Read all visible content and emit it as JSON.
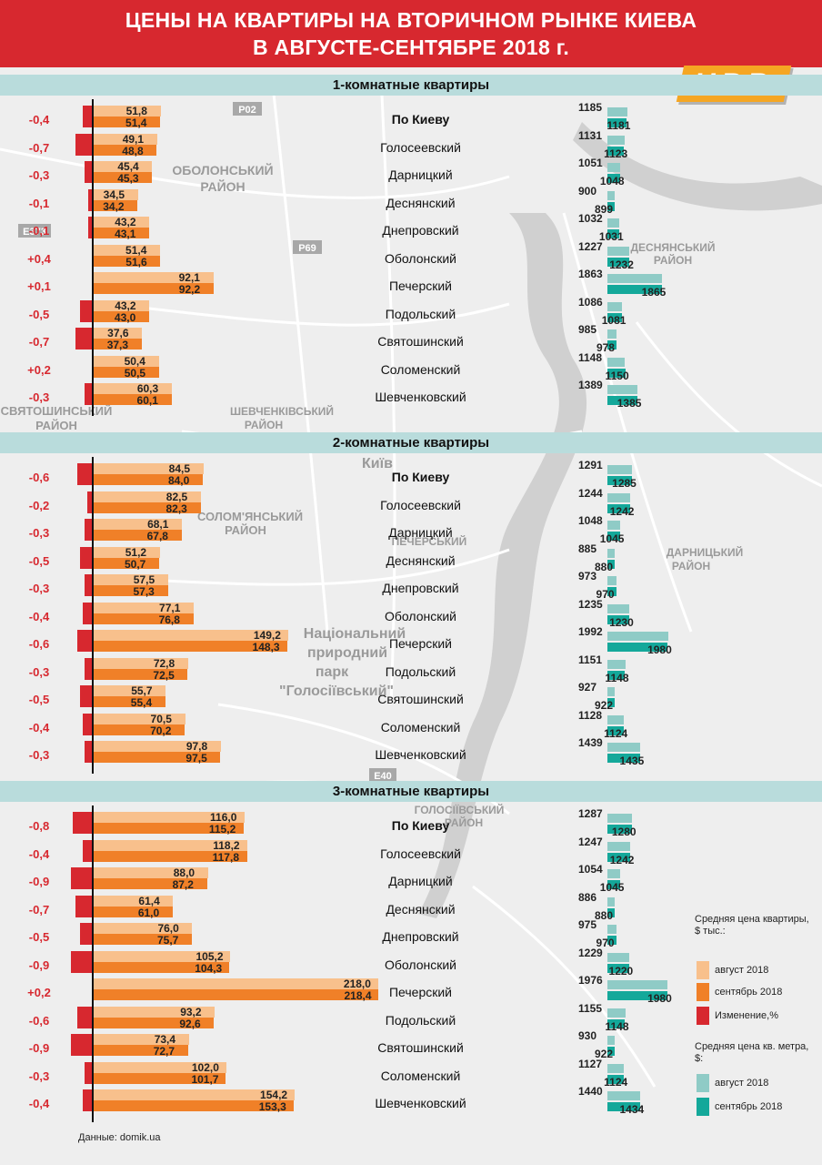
{
  "title_line1": "ЦЕНЫ НА КВАРТИРЫ НА ВТОРИЧНОМ РЫНКЕ КИЕВА",
  "title_line2": "В АВГУСТЕ-СЕНТЯБРЕ 2018 г.",
  "logo_text": "UBR",
  "source": "Данные: domik.ua",
  "colors": {
    "title_bg": "#d7282f",
    "header_bg": "#b9dcdc",
    "aug_apartment": "#f8c08c",
    "sep_apartment": "#f08028",
    "change": "#d7282f",
    "aug_sqm": "#8fcbc6",
    "sep_sqm": "#14a89a",
    "logo": "#f5a623"
  },
  "legend": {
    "price_title": "Средняя цена квартиры, $ тыс.:",
    "aug": "август 2018",
    "sep": "сентябрь 2018",
    "change": "Изменение,%",
    "sqm_title": "Средняя цена кв. метра, $:",
    "sqm_aug": "август 2018",
    "sqm_sep": "сентябрь 2018"
  },
  "map_labels": [
    {
      "text": "ОБОЛОНСЬКИЙ"
    },
    {
      "text": "РАЙОН"
    },
    {
      "text": "ДЕСНЯНСЬКИЙ"
    },
    {
      "text": "РАЙОН"
    },
    {
      "text": "ШЕВЧЕНКІВСЬКИЙ"
    },
    {
      "text": "РАЙОН"
    },
    {
      "text": "Київ"
    },
    {
      "text": "СОЛОМ'ЯНСЬКИЙ"
    },
    {
      "text": "РАЙОН"
    },
    {
      "text": "ПЕЧЕРСЬКИЙ"
    },
    {
      "text": "ДАРНИЦЬКИЙ"
    },
    {
      "text": "РАЙОН"
    },
    {
      "text": "Національний"
    },
    {
      "text": "природний"
    },
    {
      "text": "парк"
    },
    {
      "text": "\"Голосіївський\""
    },
    {
      "text": "ГОЛОСІЇВСЬКИЙ"
    },
    {
      "text": "РАЙОН"
    },
    {
      "text": "СВЯТОШИНСЬКИЙ"
    },
    {
      "text": "РАЙОН"
    },
    {
      "text": "Р02"
    },
    {
      "text": "Р69"
    },
    {
      "text": "Е373"
    },
    {
      "text": "Е40"
    }
  ],
  "chart_data": [
    {
      "type": "bar",
      "title": "1-комнатные квартиры",
      "categories": [
        "По Киеву",
        "Голосеевский",
        "Дарницкий",
        "Деснянский",
        "Днепровский",
        "Оболонский",
        "Печерский",
        "Подольский",
        "Святошинский",
        "Соломенский",
        "Шевченковский"
      ],
      "series": [
        {
          "name": "август 2018",
          "unit": "$ тыс.",
          "values": [
            51.8,
            49.1,
            45.4,
            34.5,
            43.2,
            51.4,
            92.1,
            43.2,
            37.6,
            50.4,
            60.3
          ],
          "labels": [
            "51,8",
            "49,1",
            "45,4",
            "34,5",
            "43,2",
            "51,4",
            "92,1",
            "43,2",
            "37,6",
            "50,4",
            "60,3"
          ]
        },
        {
          "name": "сентябрь 2018",
          "unit": "$ тыс.",
          "values": [
            51.4,
            48.8,
            45.3,
            34.2,
            43.1,
            51.6,
            92.2,
            43.0,
            37.3,
            50.5,
            60.1
          ],
          "labels": [
            "51,4",
            "48,8",
            "45,3",
            "34,2",
            "43,1",
            "51,6",
            "92,2",
            "43,0",
            "37,3",
            "50,5",
            "60,1"
          ]
        },
        {
          "name": "Изменение,%",
          "unit": "%",
          "values": [
            -0.4,
            -0.7,
            -0.3,
            -0.1,
            -0.1,
            0.4,
            0.1,
            -0.5,
            -0.7,
            0.2,
            -0.3
          ],
          "labels": [
            "-0,4",
            "-0,7",
            "-0,3",
            "-0,1",
            "-0,1",
            "+0,4",
            "+0,1",
            "-0,5",
            "-0,7",
            "+0,2",
            "-0,3"
          ]
        },
        {
          "name": "август 2018",
          "unit": "$ за кв. м",
          "values": [
            1185,
            1131,
            1051,
            900,
            1032,
            1227,
            1863,
            1086,
            985,
            1148,
            1389
          ],
          "labels": [
            "1185",
            "1131",
            "1051",
            "900",
            "1032",
            "1227",
            "1863",
            "1086",
            "985",
            "1148",
            "1389"
          ]
        },
        {
          "name": "сентябрь 2018",
          "unit": "$ за кв. м",
          "values": [
            1181,
            1123,
            1048,
            899,
            1031,
            1232,
            1865,
            1081,
            978,
            1150,
            1385
          ],
          "labels": [
            "1181",
            "1123",
            "1048",
            "899",
            "1031",
            "1232",
            "1865",
            "1081",
            "978",
            "1150",
            "1385"
          ]
        }
      ]
    },
    {
      "type": "bar",
      "title": "2-комнатные квартиры",
      "categories": [
        "По Киеву",
        "Голосеевский",
        "Дарницкий",
        "Деснянский",
        "Днепровский",
        "Оболонский",
        "Печерский",
        "Подольский",
        "Святошинский",
        "Соломенский",
        "Шевченковский"
      ],
      "series": [
        {
          "name": "август 2018",
          "unit": "$ тыс.",
          "values": [
            84.5,
            82.5,
            68.1,
            51.2,
            57.5,
            77.1,
            149.2,
            72.8,
            55.7,
            70.5,
            97.8
          ],
          "labels": [
            "84,5",
            "82,5",
            "68,1",
            "51,2",
            "57,5",
            "77,1",
            "149,2",
            "72,8",
            "55,7",
            "70,5",
            "97,8"
          ]
        },
        {
          "name": "сентябрь 2018",
          "unit": "$ тыс.",
          "values": [
            84.0,
            82.3,
            67.8,
            50.7,
            57.3,
            76.8,
            148.3,
            72.5,
            55.4,
            70.2,
            97.5
          ],
          "labels": [
            "84,0",
            "82,3",
            "67,8",
            "50,7",
            "57,3",
            "76,8",
            "148,3",
            "72,5",
            "55,4",
            "70,2",
            "97,5"
          ]
        },
        {
          "name": "Изменение,%",
          "unit": "%",
          "values": [
            -0.6,
            -0.2,
            -0.3,
            -0.5,
            -0.3,
            -0.4,
            -0.6,
            -0.3,
            -0.5,
            -0.4,
            -0.3
          ],
          "labels": [
            "-0,6",
            "-0,2",
            "-0,3",
            "-0,5",
            "-0,3",
            "-0,4",
            "-0,6",
            "-0,3",
            "-0,5",
            "-0,4",
            "-0,3"
          ]
        },
        {
          "name": "август 2018",
          "unit": "$ за кв. м",
          "values": [
            1291,
            1244,
            1048,
            885,
            973,
            1235,
            1992,
            1151,
            927,
            1128,
            1439
          ],
          "labels": [
            "1291",
            "1244",
            "1048",
            "885",
            "973",
            "1235",
            "1992",
            "1151",
            "927",
            "1128",
            "1439"
          ]
        },
        {
          "name": "сентябрь 2018",
          "unit": "$ за кв. м",
          "values": [
            1285,
            1242,
            1045,
            880,
            970,
            1230,
            1980,
            1148,
            922,
            1124,
            1435
          ],
          "labels": [
            "1285",
            "1242",
            "1045",
            "880",
            "970",
            "1230",
            "1980",
            "1148",
            "922",
            "1124",
            "1435"
          ]
        }
      ]
    },
    {
      "type": "bar",
      "title": "3-комнатные квартиры",
      "categories": [
        "По Киеву",
        "Голосеевский",
        "Дарницкий",
        "Деснянский",
        "Днепровский",
        "Оболонский",
        "Печерский",
        "Подольский",
        "Святошинский",
        "Соломенский",
        "Шевченковский"
      ],
      "series": [
        {
          "name": "август 2018",
          "unit": "$ тыс.",
          "values": [
            116.0,
            118.2,
            88.0,
            61.4,
            76.0,
            105.2,
            218.0,
            93.2,
            73.4,
            102.0,
            154.2
          ],
          "labels": [
            "116,0",
            "118,2",
            "88,0",
            "61,4",
            "76,0",
            "105,2",
            "218,0",
            "93,2",
            "73,4",
            "102,0",
            "154,2"
          ]
        },
        {
          "name": "сентябрь 2018",
          "unit": "$ тыс.",
          "values": [
            115.2,
            117.8,
            87.2,
            61.0,
            75.7,
            104.3,
            218.4,
            92.6,
            72.7,
            101.7,
            153.3
          ],
          "labels": [
            "115,2",
            "117,8",
            "87,2",
            "61,0",
            "75,7",
            "104,3",
            "218,4",
            "92,6",
            "72,7",
            "101,7",
            "153,3"
          ]
        },
        {
          "name": "Изменение,%",
          "unit": "%",
          "values": [
            -0.8,
            -0.4,
            -0.9,
            -0.7,
            -0.5,
            -0.9,
            0.2,
            -0.6,
            -0.9,
            -0.3,
            -0.4
          ],
          "labels": [
            "-0,8",
            "-0,4",
            "-0,9",
            "-0,7",
            "-0,5",
            "-0,9",
            "+0,2",
            "-0,6",
            "-0,9",
            "-0,3",
            "-0,4"
          ]
        },
        {
          "name": "август 2018",
          "unit": "$ за кв. м",
          "values": [
            1287,
            1247,
            1054,
            886,
            975,
            1229,
            1976,
            1155,
            930,
            1127,
            1440
          ],
          "labels": [
            "1287",
            "1247",
            "1054",
            "886",
            "975",
            "1229",
            "1976",
            "1155",
            "930",
            "1127",
            "1440"
          ]
        },
        {
          "name": "сентябрь 2018",
          "unit": "$ за кв. м",
          "values": [
            1280,
            1242,
            1045,
            880,
            970,
            1220,
            1980,
            1148,
            922,
            1124,
            1434
          ],
          "labels": [
            "1280",
            "1242",
            "1045",
            "880",
            "970",
            "1220",
            "1980",
            "1148",
            "922",
            "1124",
            "1434"
          ]
        }
      ]
    }
  ]
}
